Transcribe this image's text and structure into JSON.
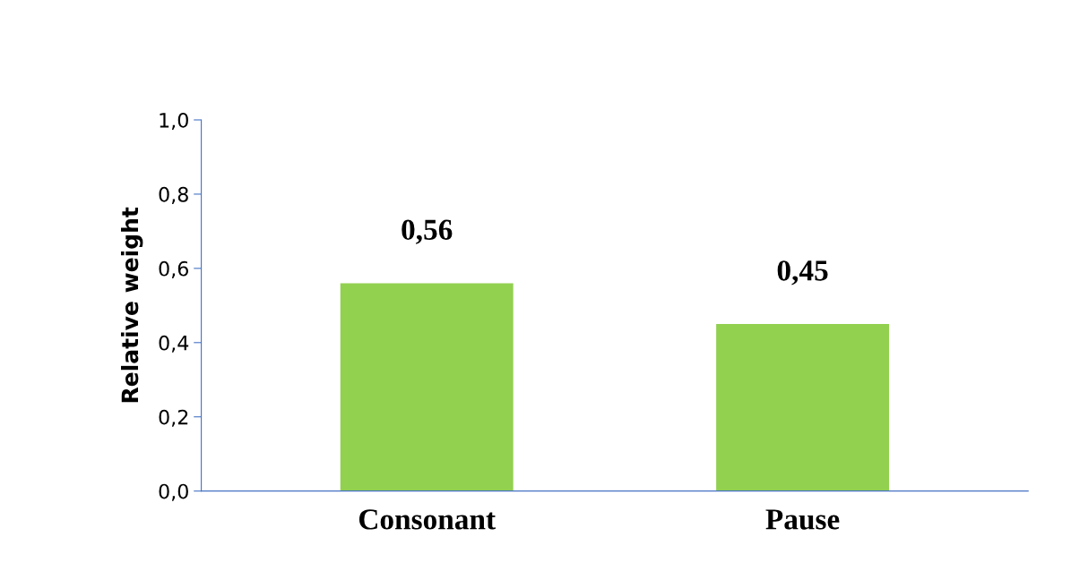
{
  "chart_data": {
    "type": "bar",
    "ylabel": "Relative weight",
    "categories": [
      "Consonant",
      "Pause"
    ],
    "values": [
      0.56,
      0.45
    ],
    "value_labels": [
      "0,56",
      "0,45"
    ],
    "color": "#92d050",
    "ylim": [
      0,
      1
    ],
    "yticks": [
      {
        "value": 0,
        "label": "0,0"
      },
      {
        "value": 0.2,
        "label": "0,2"
      },
      {
        "value": 0.4,
        "label": "0,4"
      },
      {
        "value": 0.6,
        "label": "0,6"
      },
      {
        "value": 0.8,
        "label": "0,8"
      },
      {
        "value": 1,
        "label": "1,0"
      }
    ],
    "grid": false,
    "legend": false
  }
}
